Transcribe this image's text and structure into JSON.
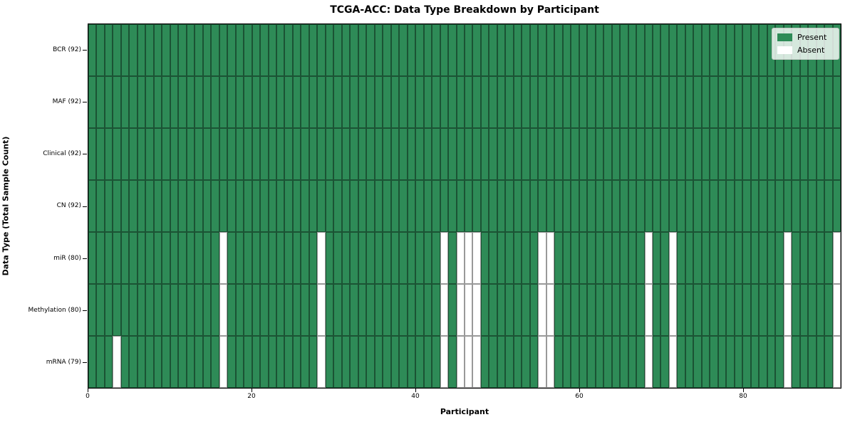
{
  "title": "TCGA-ACC: Data Type Breakdown by Participant",
  "axes": {
    "x_label": "Participant",
    "y_label": "Data Type (Total Sample Count)"
  },
  "legend": {
    "items": [
      {
        "name": "present",
        "label": "Present",
        "color": "#2E8B57"
      },
      {
        "name": "absent",
        "label": "Absent",
        "color": "#FFFFFF"
      }
    ],
    "position": "upper right"
  },
  "colors": {
    "present": "#2E8B57",
    "absent": "#FFFFFF",
    "cell_edge": "rgba(0,0,0,0.4)",
    "plot_border": "#000000"
  },
  "chart_data": {
    "type": "heatmap",
    "title": "TCGA-ACC: Data Type Breakdown by Participant",
    "xlabel": "Participant",
    "ylabel": "Data Type (Total Sample Count)",
    "n_participants": 92,
    "x_range": [
      0,
      92
    ],
    "x_ticks": [
      0,
      20,
      40,
      60,
      80
    ],
    "grid": "cell-borders",
    "legend_entries": [
      "Present",
      "Absent"
    ],
    "legend_position": "upper right",
    "rows": [
      {
        "label": "BCR (92)",
        "data_type": "BCR",
        "total_samples": 92,
        "absent_participants": []
      },
      {
        "label": "MAF (92)",
        "data_type": "MAF",
        "total_samples": 92,
        "absent_participants": []
      },
      {
        "label": "Clinical (92)",
        "data_type": "Clinical",
        "total_samples": 92,
        "absent_participants": []
      },
      {
        "label": "CN (92)",
        "data_type": "CN",
        "total_samples": 92,
        "absent_participants": []
      },
      {
        "label": "miR (80)",
        "data_type": "miR",
        "total_samples": 80,
        "absent_participants": [
          16,
          28,
          43,
          45,
          46,
          47,
          55,
          56,
          68,
          71,
          85,
          91
        ]
      },
      {
        "label": "Methylation (80)",
        "data_type": "Methylation",
        "total_samples": 80,
        "absent_participants": [
          16,
          28,
          43,
          45,
          46,
          47,
          55,
          56,
          68,
          71,
          85,
          91
        ]
      },
      {
        "label": "mRNA (79)",
        "data_type": "mRNA",
        "total_samples": 79,
        "absent_participants": [
          3,
          16,
          28,
          43,
          45,
          46,
          47,
          55,
          56,
          68,
          71,
          85,
          91
        ]
      }
    ]
  }
}
